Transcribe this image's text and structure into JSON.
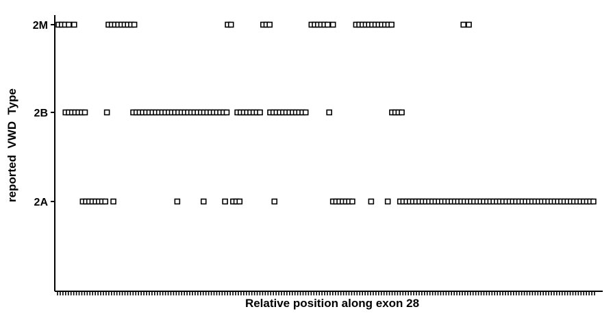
{
  "chart_data": {
    "type": "scatter",
    "title": "",
    "xlabel": "Relative position along exon 28",
    "ylabel": "reported  VWD  Type",
    "categories": [
      "2A",
      "2B",
      "2M"
    ],
    "xlim": [
      0,
      100
    ],
    "x_ticks_count": 200,
    "grid": false,
    "legend": "none",
    "marker": "open-square",
    "colors": {
      "marker": "#000000",
      "axis": "#000000",
      "background": "#ffffff"
    },
    "series": [
      {
        "values": [
          {
            "category": "2M",
            "x": [
              0.2,
              0.8,
              1.4,
              2.1,
              3.1,
              9.5,
              10.1,
              10.7,
              11.3,
              11.9,
              12.5,
              13.1,
              13.7,
              14.3,
              31.7,
              32.3,
              38.3,
              38.9,
              39.5,
              47.3,
              47.9,
              48.5,
              49.1,
              49.7,
              50.3,
              51.3,
              55.6,
              56.2,
              56.8,
              57.4,
              58.0,
              58.6,
              59.2,
              59.8,
              60.4,
              61.0,
              61.6,
              62.2,
              75.6,
              76.6
            ]
          },
          {
            "category": "2B",
            "x": [
              1.5,
              2.1,
              2.7,
              3.3,
              3.9,
              4.5,
              5.1,
              9.2,
              14.1,
              14.7,
              15.3,
              15.9,
              16.5,
              17.1,
              17.7,
              18.3,
              18.9,
              19.5,
              20.1,
              20.7,
              21.3,
              21.9,
              22.5,
              23.1,
              23.7,
              24.3,
              24.9,
              25.5,
              26.1,
              26.7,
              27.3,
              27.9,
              28.5,
              29.1,
              29.7,
              30.3,
              30.9,
              31.5,
              33.5,
              34.1,
              34.7,
              35.3,
              35.9,
              36.5,
              37.1,
              37.7,
              39.6,
              40.2,
              40.8,
              41.4,
              42.0,
              42.6,
              43.2,
              43.8,
              44.4,
              45.0,
              45.6,
              46.2,
              50.6,
              62.3,
              62.9,
              63.5,
              64.1
            ]
          },
          {
            "category": "2A",
            "x": [
              4.7,
              5.3,
              5.9,
              6.5,
              7.1,
              7.7,
              8.3,
              8.9,
              10.4,
              22.3,
              27.2,
              31.2,
              32.7,
              33.3,
              33.9,
              40.4,
              51.3,
              51.9,
              52.5,
              53.1,
              53.7,
              54.3,
              54.9,
              58.4,
              61.5,
              63.8,
              64.4,
              65.0,
              65.6,
              66.2,
              66.8,
              67.4,
              68.0,
              68.6,
              69.2,
              69.8,
              70.4,
              71.0,
              71.6,
              72.2,
              72.8,
              73.4,
              74.0,
              74.6,
              75.2,
              75.8,
              76.4,
              77.0,
              77.6,
              78.2,
              78.8,
              79.4,
              80.0,
              80.6,
              81.2,
              81.8,
              82.4,
              83.0,
              83.6,
              84.2,
              84.8,
              85.4,
              86.0,
              86.6,
              87.2,
              87.8,
              88.4,
              89.0,
              89.6,
              90.2,
              90.8,
              91.4,
              92.0,
              92.6,
              93.2,
              93.8,
              94.4,
              95.0,
              95.6,
              96.2,
              96.8,
              97.4,
              98.0,
              98.6,
              99.2,
              99.8
            ]
          }
        ]
      }
    ]
  }
}
